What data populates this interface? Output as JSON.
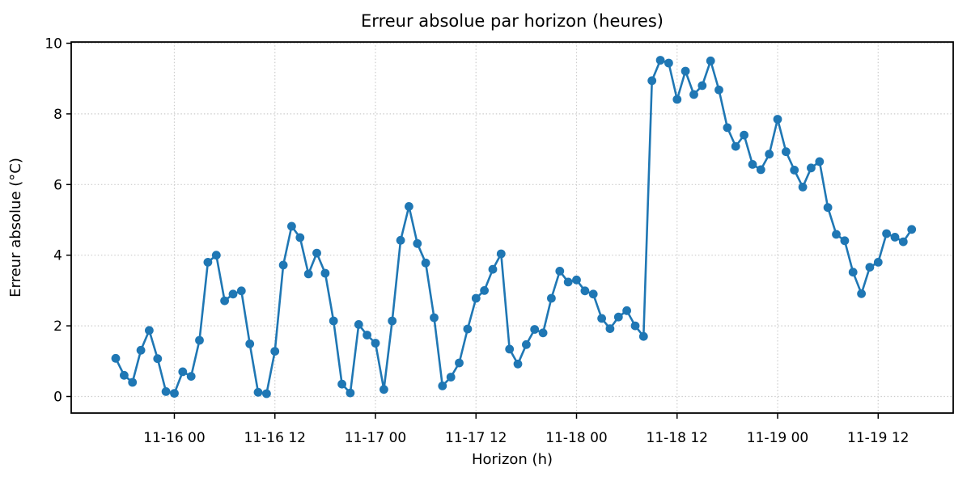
{
  "figure": {
    "background_color": "#ffffff",
    "plot_background_color": "#ffffff"
  },
  "chart_data": {
    "type": "line",
    "title": "Erreur absolue par horizon (heures)",
    "xlabel": "Horizon (h)",
    "ylabel": "Erreur absolue (°C)",
    "legend_position": "none",
    "grid": true,
    "grid_style": "dotted",
    "grid_color": "#cccccc",
    "spine_color": "#000000",
    "ylim": [
      -0.47,
      10.03
    ],
    "y_ticks": [
      0,
      2,
      4,
      6,
      8,
      10
    ],
    "x_tick_labels": [
      "11-16 00",
      "11-16 12",
      "11-17 00",
      "11-17 12",
      "11-18 00",
      "11-18 12",
      "11-19 00",
      "11-19 12"
    ],
    "x_tick_point_indices": [
      7,
      19,
      31,
      43,
      55,
      67,
      79,
      91
    ],
    "points_are_hourly": true,
    "point_count": 96,
    "series": [
      {
        "name": "erreur_absolue",
        "color": "#1f77b4",
        "marker": "circle",
        "marker_radius": 5.4,
        "line_width": 2.6,
        "values": [
          1.08,
          0.6,
          0.4,
          1.31,
          1.87,
          1.07,
          0.14,
          0.09,
          0.7,
          0.57,
          1.59,
          3.8,
          4.0,
          2.71,
          2.9,
          2.99,
          1.49,
          0.12,
          0.08,
          1.28,
          3.72,
          4.82,
          4.5,
          3.47,
          4.06,
          3.49,
          2.14,
          0.35,
          0.1,
          2.04,
          1.74,
          1.51,
          0.2,
          2.14,
          4.42,
          5.38,
          4.33,
          3.78,
          2.23,
          0.3,
          0.55,
          0.95,
          1.91,
          2.78,
          3.0,
          3.6,
          4.04,
          1.34,
          0.92,
          1.47,
          1.9,
          1.8,
          2.78,
          3.55,
          3.24,
          3.3,
          2.99,
          2.9,
          2.21,
          1.92,
          2.25,
          2.43,
          2.0,
          1.7,
          8.94,
          9.52,
          9.44,
          8.41,
          9.21,
          8.55,
          8.8,
          9.5,
          8.68,
          7.61,
          7.08,
          7.4,
          6.57,
          6.42,
          6.86,
          7.85,
          6.93,
          6.41,
          5.93,
          6.47,
          6.65,
          5.35,
          4.59,
          4.41,
          3.52,
          2.91,
          3.66,
          3.8,
          4.61,
          4.51,
          4.38,
          4.73
        ]
      }
    ]
  }
}
